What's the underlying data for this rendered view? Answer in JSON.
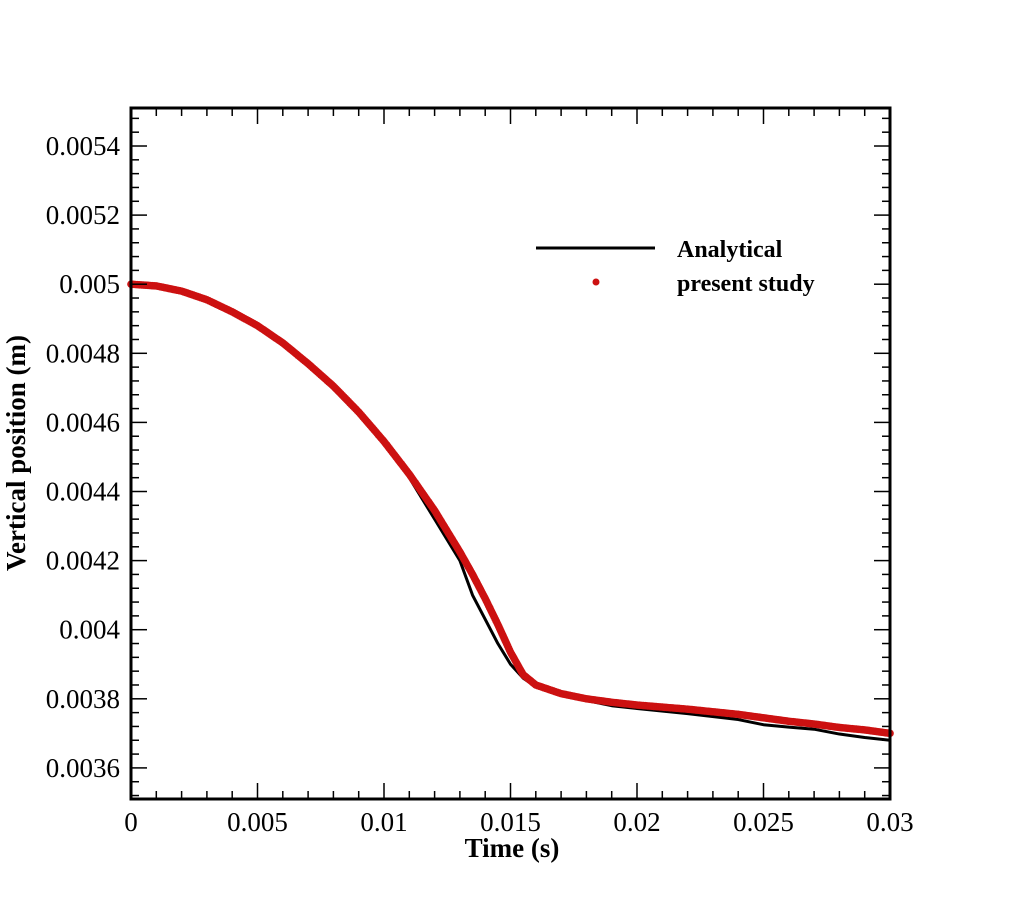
{
  "chart_data": {
    "type": "line",
    "xlabel": "Time (s)",
    "ylabel": "Vertical position (m)",
    "xlim": [
      0,
      0.03
    ],
    "ylim": [
      0.00351,
      0.00551
    ],
    "x_ticks": [
      0,
      0.005,
      0.01,
      0.015,
      0.02,
      0.025,
      0.03
    ],
    "x_tick_labels": [
      "0",
      "0.005",
      "0.01",
      "0.015",
      "0.02",
      "0.025",
      "0.03"
    ],
    "y_ticks": [
      0.0036,
      0.0038,
      0.004,
      0.0042,
      0.0044,
      0.0046,
      0.0048,
      0.005,
      0.0052,
      0.0054
    ],
    "y_tick_labels": [
      "0.0036",
      "0.0038",
      "0.004",
      "0.0042",
      "0.0044",
      "0.0046",
      "0.0048",
      "0.005",
      "0.0052",
      "0.0054"
    ],
    "grid": false,
    "legend_position": "top-right",
    "series": [
      {
        "name": "Analytical",
        "style": "line",
        "color": "#000000",
        "x": [
          0,
          0.001,
          0.002,
          0.003,
          0.004,
          0.005,
          0.006,
          0.007,
          0.008,
          0.009,
          0.01,
          0.011,
          0.012,
          0.013,
          0.0135,
          0.014,
          0.0145,
          0.015,
          0.0155,
          0.016,
          0.017,
          0.018,
          0.019,
          0.02,
          0.022,
          0.024,
          0.025,
          0.026,
          0.027,
          0.028,
          0.029,
          0.03
        ],
        "y": [
          0.005,
          0.004995,
          0.00498,
          0.004955,
          0.00492,
          0.00488,
          0.00483,
          0.00477,
          0.0047,
          0.004625,
          0.00454,
          0.00444,
          0.00432,
          0.0042,
          0.0041,
          0.00403,
          0.00396,
          0.0039,
          0.00386,
          0.003835,
          0.00381,
          0.003795,
          0.00378,
          0.003772,
          0.003757,
          0.00374,
          0.003725,
          0.003718,
          0.003712,
          0.003698,
          0.003688,
          0.00368
        ]
      },
      {
        "name": "present study",
        "style": "markers",
        "color": "#cc1111",
        "x": [
          0,
          0.001,
          0.002,
          0.003,
          0.004,
          0.005,
          0.006,
          0.007,
          0.008,
          0.009,
          0.01,
          0.011,
          0.012,
          0.013,
          0.0135,
          0.014,
          0.0145,
          0.015,
          0.0155,
          0.016,
          0.017,
          0.018,
          0.019,
          0.02,
          0.022,
          0.024,
          0.025,
          0.026,
          0.027,
          0.028,
          0.029,
          0.03
        ],
        "y": [
          0.005,
          0.004995,
          0.00498,
          0.004955,
          0.00492,
          0.00488,
          0.00483,
          0.00477,
          0.004705,
          0.00463,
          0.004545,
          0.00445,
          0.004345,
          0.004225,
          0.00416,
          0.00409,
          0.004015,
          0.003935,
          0.00387,
          0.00384,
          0.003815,
          0.0038,
          0.00379,
          0.003782,
          0.00377,
          0.003755,
          0.003745,
          0.003735,
          0.003727,
          0.003717,
          0.00371,
          0.0037
        ]
      }
    ]
  }
}
